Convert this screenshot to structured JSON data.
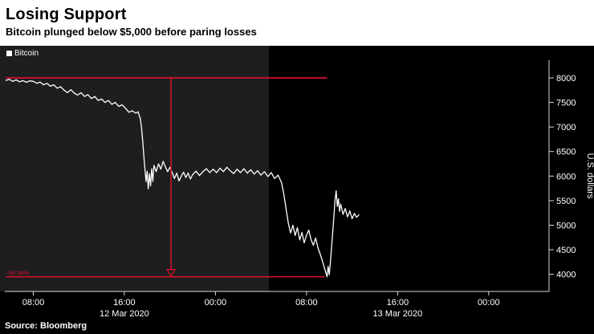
{
  "header": {
    "title": "Losing Support",
    "subtitle": "Bitcoin plunged below $5,000 before paring losses"
  },
  "legend": {
    "label": "Bitcoin",
    "swatch_color": "#ffffff"
  },
  "source": "Source: Bloomberg",
  "colors": {
    "background": "#000000",
    "header_background": "#ffffff",
    "line": "#ffffff",
    "annotation_red": "#d8102c",
    "axis": "#d9d9d9",
    "shade": "#1e1e1e"
  },
  "chart_data": {
    "type": "line",
    "title": "Losing Support",
    "subtitle": "Bitcoin plunged below $5,000 before paring losses",
    "ylabel": "U.S. dollars",
    "xlabel": "",
    "x_unit": "hours since 12 Mar 2020 00:00",
    "xlim": [
      5.5,
      53.3
    ],
    "ylim": [
      3650,
      8360
    ],
    "grid": false,
    "legend_position": "top-left",
    "y_ticks": [
      4000,
      4500,
      5000,
      5500,
      6000,
      6500,
      7000,
      7500,
      8000
    ],
    "x_ticks": [
      {
        "hour": 8,
        "label": "08:00"
      },
      {
        "hour": 16,
        "label": "16:00"
      },
      {
        "hour": 24,
        "label": "00:00"
      },
      {
        "hour": 32,
        "label": "08:00"
      },
      {
        "hour": 40,
        "label": "16:00"
      },
      {
        "hour": 48,
        "label": "00:00"
      }
    ],
    "date_labels": [
      {
        "hour": 16,
        "label": "12 Mar 2020"
      },
      {
        "hour": 40,
        "label": "13 Mar 2020"
      }
    ],
    "shaded_region": {
      "from_hour": 5.5,
      "to_hour": 28.7,
      "color": "#1e1e1e"
    },
    "annotations": {
      "color": "#d8102c",
      "drawdown_label": "-50.99%",
      "high_line": {
        "price": 8000,
        "from_hour": 5.6,
        "to_hour": 33.8
      },
      "low_line": {
        "price": 3950,
        "from_hour": 5.6,
        "to_hour": 33.6
      },
      "drop_line": {
        "hour": 20.1,
        "from_price": 8000,
        "to_price": 3950
      }
    },
    "series": [
      {
        "name": "Bitcoin",
        "color": "#ffffff",
        "x": [
          5.6,
          5.9,
          6.2,
          6.5,
          6.8,
          7.1,
          7.4,
          7.7,
          8.0,
          8.3,
          8.6,
          8.9,
          9.2,
          9.5,
          9.8,
          10.1,
          10.4,
          10.7,
          11.0,
          11.3,
          11.6,
          11.9,
          12.2,
          12.5,
          12.8,
          13.1,
          13.4,
          13.7,
          14.0,
          14.3,
          14.6,
          14.9,
          15.2,
          15.5,
          15.8,
          16.1,
          16.4,
          16.7,
          17.0,
          17.2,
          17.4,
          17.5,
          17.6,
          17.7,
          17.8,
          17.9,
          18.0,
          18.1,
          18.2,
          18.3,
          18.4,
          18.5,
          18.6,
          18.8,
          19.0,
          19.2,
          19.4,
          19.6,
          19.8,
          20.0,
          20.2,
          20.4,
          20.6,
          20.8,
          21.0,
          21.2,
          21.4,
          21.6,
          21.8,
          22.0,
          22.3,
          22.6,
          22.9,
          23.2,
          23.5,
          23.8,
          24.1,
          24.4,
          24.7,
          25.0,
          25.3,
          25.6,
          25.9,
          26.2,
          26.5,
          26.8,
          27.1,
          27.4,
          27.7,
          28.0,
          28.3,
          28.6,
          28.9,
          29.2,
          29.5,
          29.8,
          30.0,
          30.2,
          30.4,
          30.6,
          30.8,
          31.0,
          31.2,
          31.4,
          31.6,
          31.8,
          32.0,
          32.2,
          32.4,
          32.6,
          32.8,
          33.0,
          33.2,
          33.4,
          33.6,
          33.8,
          33.9,
          34.0,
          34.1,
          34.2,
          34.3,
          34.4,
          34.5,
          34.6,
          34.7,
          34.8,
          34.9,
          35.0,
          35.2,
          35.4,
          35.6,
          35.8,
          36.0,
          36.2,
          36.4,
          36.6
        ],
        "y": [
          7950,
          7970,
          7930,
          7960,
          7920,
          7945,
          7910,
          7940,
          7930,
          7890,
          7915,
          7860,
          7890,
          7830,
          7860,
          7790,
          7820,
          7750,
          7700,
          7760,
          7690,
          7650,
          7700,
          7620,
          7660,
          7580,
          7620,
          7540,
          7570,
          7500,
          7540,
          7460,
          7500,
          7420,
          7450,
          7380,
          7300,
          7330,
          7280,
          7310,
          7170,
          7000,
          6750,
          6450,
          6150,
          5890,
          6100,
          5740,
          6050,
          5800,
          6150,
          5890,
          6220,
          6090,
          6250,
          6140,
          6300,
          6190,
          6090,
          6180,
          6070,
          5950,
          6060,
          5900,
          6000,
          6080,
          5970,
          6060,
          5940,
          6030,
          6100,
          6010,
          6090,
          6150,
          6070,
          6140,
          6070,
          6160,
          6090,
          6180,
          6110,
          6050,
          6140,
          6070,
          6150,
          6060,
          6130,
          6040,
          6110,
          6020,
          6090,
          5990,
          6070,
          5950,
          6020,
          5870,
          5640,
          5340,
          5040,
          4840,
          5000,
          4790,
          4950,
          4700,
          4850,
          4640,
          4800,
          4900,
          4700,
          4590,
          4740,
          4540,
          4410,
          4270,
          4110,
          3950,
          4160,
          3990,
          4260,
          4560,
          4860,
          5160,
          5500,
          5700,
          5380,
          5540,
          5280,
          5430,
          5220,
          5340,
          5170,
          5290,
          5130,
          5240,
          5160,
          5210
        ]
      }
    ]
  }
}
